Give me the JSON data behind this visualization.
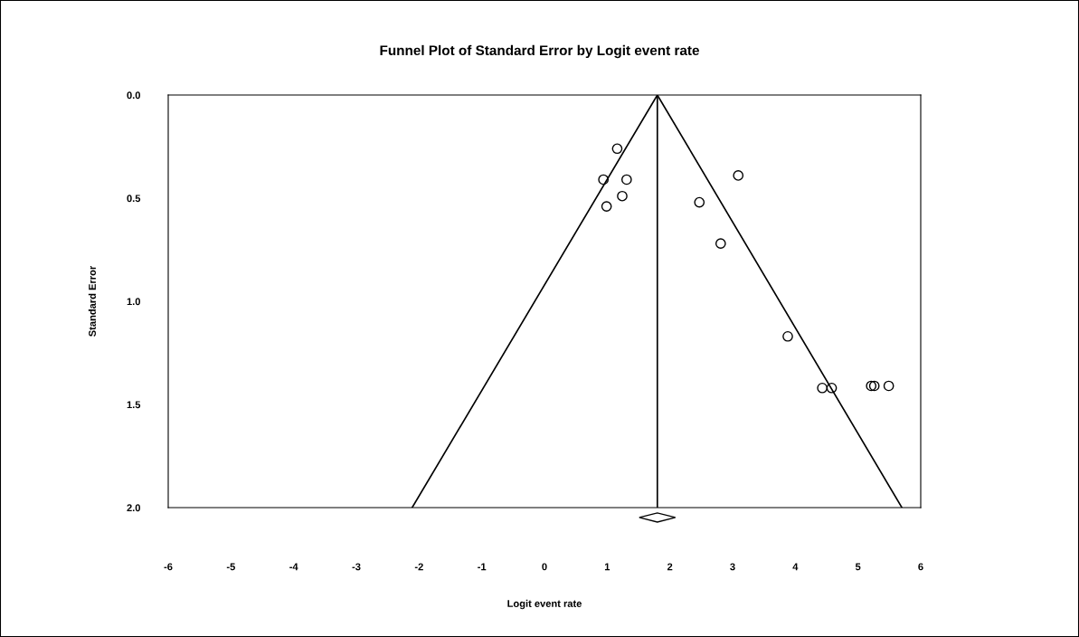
{
  "chart_data": {
    "type": "scatter",
    "title": "Funnel Plot of Standard Error by Logit event rate",
    "xlabel": "Logit event rate",
    "ylabel": "Standard Error",
    "x": [
      1.16,
      0.94,
      1.31,
      1.24,
      0.99,
      3.09,
      2.47,
      2.81,
      3.88,
      4.43,
      4.58,
      5.21,
      5.26,
      5.49
    ],
    "values": [
      0.26,
      0.41,
      0.41,
      0.49,
      0.54,
      0.39,
      0.52,
      0.72,
      1.17,
      1.42,
      1.42,
      1.41,
      1.41,
      1.41
    ],
    "series": [
      {
        "type": "line",
        "x": [
          -2.11,
          1.8,
          5.7
        ],
        "values": [
          2.0,
          0.0,
          2.0
        ],
        "color": "#000000",
        "marker": "none"
      }
    ],
    "marker": "circle",
    "grid": false,
    "legend": false,
    "xlim": [
      -6,
      6
    ],
    "xticks": [
      -6,
      -5,
      -4,
      -3,
      -2,
      -1,
      0,
      1,
      2,
      3,
      4,
      5,
      6
    ],
    "ylim": [
      2.0,
      0.0
    ],
    "yticks": [
      {
        "value": 0,
        "label": "0.0"
      },
      {
        "value": 0.5,
        "label": "0.5"
      },
      {
        "value": 1,
        "label": "1.0"
      },
      {
        "value": 1.5,
        "label": "1.5"
      },
      {
        "value": 2,
        "label": "2.0"
      }
    ],
    "ref_lines": [
      {
        "axis": "x",
        "value": 1.8,
        "color": "#000000"
      }
    ]
  }
}
